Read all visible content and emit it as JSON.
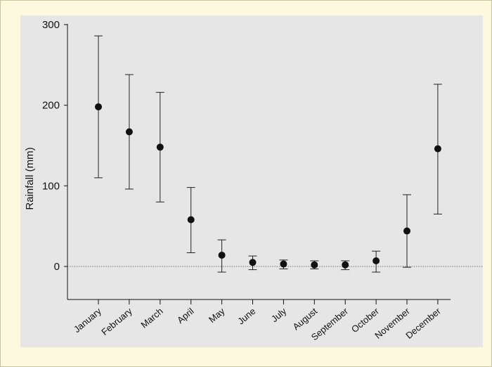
{
  "chart_data": {
    "type": "scatter",
    "subtype": "error-bar",
    "title": "",
    "xlabel": "",
    "ylabel": "Rainfall (mm)",
    "ylim": [
      -42,
      300
    ],
    "yticks": [
      0,
      100,
      200,
      300
    ],
    "grid": false,
    "reference_line": {
      "y": 0,
      "style": "dotted"
    },
    "background_color": "#e6e6e6",
    "marker_color": "#111111",
    "categories": [
      "January",
      "February",
      "March",
      "April",
      "May",
      "June",
      "July",
      "August",
      "September",
      "October",
      "November",
      "December"
    ],
    "series": [
      {
        "values": [
          198,
          167,
          148,
          58,
          14,
          5,
          3,
          2,
          2,
          7,
          44,
          146
        ],
        "upper": [
          286,
          238,
          216,
          98,
          33,
          13,
          8,
          7,
          7,
          19,
          89,
          226
        ],
        "lower": [
          110,
          96,
          80,
          17,
          -7,
          -4,
          -3,
          -3,
          -4,
          -7,
          -1,
          65
        ]
      }
    ]
  }
}
